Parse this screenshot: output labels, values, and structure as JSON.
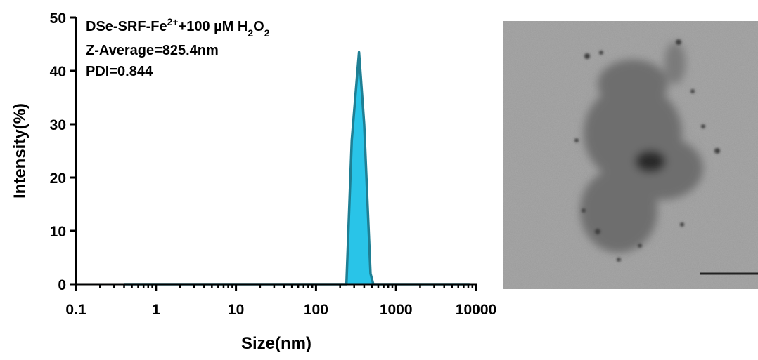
{
  "chart_data": {
    "type": "area",
    "title_parts": [
      {
        "text": "DSe-SRF-Fe"
      },
      {
        "text": "2+",
        "script": "super"
      },
      {
        "text": "+100 µM H"
      },
      {
        "text": "2",
        "script": "sub"
      },
      {
        "text": "O"
      },
      {
        "text": "2",
        "script": "sub"
      }
    ],
    "annotations": [
      "Z-Average=825.4nm",
      "PDI=0.844"
    ],
    "x_label": "Size(nm)",
    "y_label": "Intensity(%)",
    "x": [
      0.4,
      240,
      280,
      345,
      400,
      480,
      520,
      8300
    ],
    "values": [
      0,
      0,
      27,
      43.5,
      30,
      2,
      0,
      0
    ],
    "color": "#29c4e8",
    "line_color": "#1f7f94",
    "x_log": true,
    "xlim": [
      0.1,
      10000
    ],
    "xticks": [
      0.1,
      1,
      10,
      100,
      1000,
      10000
    ],
    "xminorticks": [
      0.2,
      0.3,
      0.4,
      0.5,
      0.6,
      0.7,
      0.8,
      0.9,
      2,
      3,
      4,
      5,
      6,
      7,
      8,
      9,
      20,
      30,
      40,
      50,
      60,
      70,
      80,
      90,
      200,
      300,
      400,
      500,
      600,
      700,
      800,
      900,
      2000,
      3000,
      4000,
      5000,
      6000,
      7000,
      8000,
      9000
    ],
    "ylim": [
      0,
      50
    ],
    "yticks": [
      0,
      10,
      20,
      30,
      40,
      50
    ]
  }
}
